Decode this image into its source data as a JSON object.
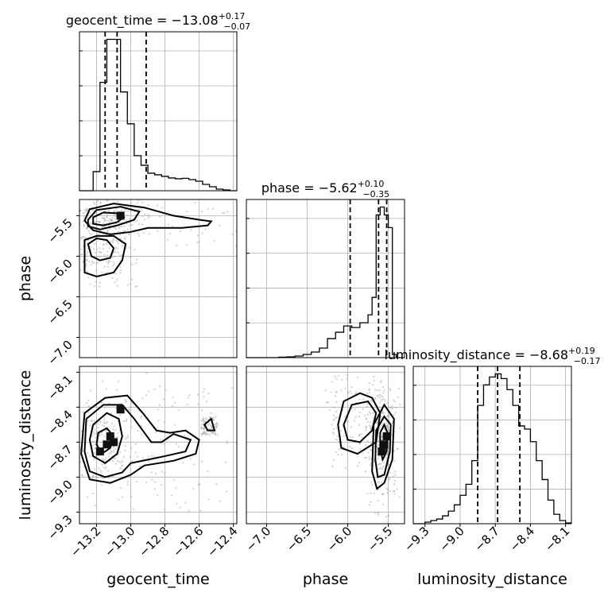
{
  "chart_data": {
    "type": "corner",
    "parameters": [
      {
        "name": "geocent_time",
        "axis_label": "geocent_time",
        "title": {
          "prefix": "geocent_time = ",
          "median": "−13.08",
          "plus": "+0.17",
          "minus": "−0.07"
        },
        "range": [
          -13.3,
          -12.38
        ],
        "ticks": [
          -13.2,
          -13.0,
          -12.8,
          -12.6,
          -12.4
        ],
        "tick_labels": [
          "−13.2",
          "−13.0",
          "−12.8",
          "−12.6",
          "−12.4"
        ],
        "quantiles": [
          -13.15,
          -13.08,
          -12.91
        ],
        "histogram": {
          "edges": [
            -13.3,
            -13.26,
            -13.22,
            -13.18,
            -13.14,
            -13.1,
            -13.06,
            -13.02,
            -12.98,
            -12.94,
            -12.9,
            -12.86,
            -12.82,
            -12.78,
            -12.74,
            -12.7,
            -12.66,
            -12.62,
            -12.58,
            -12.54,
            -12.5,
            -12.46,
            -12.42,
            -12.38
          ],
          "counts": [
            0,
            0,
            0.12,
            0.68,
            0.95,
            0.95,
            0.62,
            0.42,
            0.22,
            0.16,
            0.11,
            0.1,
            0.09,
            0.08,
            0.075,
            0.078,
            0.07,
            0.06,
            0.04,
            0.025,
            0.01,
            0.005,
            0
          ]
        }
      },
      {
        "name": "phase",
        "axis_label": "phase",
        "title": {
          "prefix": "phase = ",
          "median": "−5.62",
          "plus": "+0.10",
          "minus": "−0.35"
        },
        "range": [
          -7.25,
          -5.3
        ],
        "ticks": [
          -7.0,
          -6.5,
          -6.0,
          -5.5
        ],
        "tick_labels": [
          "−7.0",
          "−6.5",
          "−6.0",
          "−5.5"
        ],
        "quantiles": [
          -5.97,
          -5.62,
          -5.52
        ],
        "histogram": {
          "edges": [
            -7.25,
            -7.15,
            -7.05,
            -6.95,
            -6.85,
            -6.75,
            -6.65,
            -6.55,
            -6.45,
            -6.35,
            -6.25,
            -6.15,
            -6.05,
            -5.95,
            -5.85,
            -5.75,
            -5.7,
            -5.65,
            -5.6,
            -5.55,
            -5.5,
            -5.45,
            -5.4,
            -5.3
          ],
          "counts": [
            0,
            0,
            0,
            0,
            0.003,
            0.005,
            0.01,
            0.02,
            0.035,
            0.06,
            0.12,
            0.16,
            0.2,
            0.19,
            0.22,
            0.27,
            0.38,
            0.9,
            0.95,
            0.9,
            0.82,
            0.02,
            0
          ]
        }
      },
      {
        "name": "luminosity_distance",
        "axis_label": "luminosity_distance",
        "title": {
          "prefix": "luminosity_distance = ",
          "median": "−8.68",
          "plus": "+0.19",
          "minus": "−0.17"
        },
        "range": [
          -9.4,
          -8.05
        ],
        "ticks": [
          -9.3,
          -9.0,
          -8.7,
          -8.4,
          -8.1
        ],
        "tick_labels": [
          "−9.3",
          "−9.0",
          "−8.7",
          "−8.4",
          "−8.1"
        ],
        "quantiles": [
          -8.85,
          -8.68,
          -8.49
        ],
        "histogram": {
          "edges": [
            -9.4,
            -9.35,
            -9.3,
            -9.25,
            -9.2,
            -9.15,
            -9.1,
            -9.05,
            -9.0,
            -8.95,
            -8.9,
            -8.85,
            -8.8,
            -8.75,
            -8.7,
            -8.65,
            -8.6,
            -8.55,
            -8.5,
            -8.45,
            -8.4,
            -8.35,
            -8.3,
            -8.25,
            -8.2,
            -8.15,
            -8.1,
            -8.05
          ],
          "counts": [
            0,
            0,
            0.01,
            0.02,
            0.03,
            0.05,
            0.08,
            0.12,
            0.18,
            0.25,
            0.4,
            0.75,
            0.88,
            0.93,
            0.95,
            0.92,
            0.85,
            0.75,
            0.62,
            0.6,
            0.52,
            0.4,
            0.28,
            0.15,
            0.06,
            0.02,
            0.005
          ]
        }
      }
    ],
    "pairs": [
      {
        "x": "geocent_time",
        "y": "phase",
        "contours": [
          [
            [
              -13.22,
              -5.52
            ],
            [
              -13.16,
              -5.46
            ],
            [
              -13.08,
              -5.47
            ],
            [
              -13.04,
              -5.52
            ],
            [
              -13.08,
              -5.58
            ],
            [
              -13.16,
              -5.62
            ],
            [
              -13.22,
              -5.6
            ]
          ],
          [
            [
              -13.25,
              -5.55
            ],
            [
              -13.2,
              -5.43
            ],
            [
              -13.06,
              -5.39
            ],
            [
              -12.95,
              -5.45
            ],
            [
              -12.98,
              -5.55
            ],
            [
              -13.08,
              -5.62
            ],
            [
              -13.18,
              -5.67
            ],
            [
              -13.25,
              -5.63
            ]
          ],
          [
            [
              -13.27,
              -5.56
            ],
            [
              -13.24,
              -5.42
            ],
            [
              -13.1,
              -5.35
            ],
            [
              -12.92,
              -5.4
            ],
            [
              -12.75,
              -5.5
            ],
            [
              -12.6,
              -5.55
            ],
            [
              -12.53,
              -5.57
            ],
            [
              -12.55,
              -5.62
            ],
            [
              -12.7,
              -5.65
            ],
            [
              -12.9,
              -5.65
            ],
            [
              -13.0,
              -5.7
            ],
            [
              -13.12,
              -5.73
            ],
            [
              -13.22,
              -5.68
            ]
          ],
          [
            [
              -13.25,
              -5.85
            ],
            [
              -13.23,
              -6.0
            ],
            [
              -13.18,
              -6.05
            ],
            [
              -13.12,
              -6.02
            ],
            [
              -13.1,
              -5.9
            ],
            [
              -13.14,
              -5.8
            ],
            [
              -13.2,
              -5.78
            ]
          ],
          [
            [
              -13.27,
              -5.8
            ],
            [
              -13.27,
              -6.2
            ],
            [
              -13.2,
              -6.25
            ],
            [
              -13.1,
              -6.2
            ],
            [
              -13.05,
              -6.05
            ],
            [
              -13.03,
              -5.85
            ],
            [
              -13.1,
              -5.75
            ],
            [
              -13.2,
              -5.75
            ]
          ]
        ],
        "dense_cells": [
          [
            -13.06,
            -5.5
          ]
        ]
      },
      {
        "x": "geocent_time",
        "y": "luminosity_distance",
        "contours": [
          [
            [
              -13.19,
              -8.62
            ],
            [
              -13.14,
              -8.58
            ],
            [
              -13.1,
              -8.65
            ],
            [
              -13.12,
              -8.75
            ],
            [
              -13.17,
              -8.8
            ],
            [
              -13.2,
              -8.72
            ]
          ],
          [
            [
              -13.22,
              -8.55
            ],
            [
              -13.14,
              -8.45
            ],
            [
              -13.07,
              -8.5
            ],
            [
              -13.05,
              -8.65
            ],
            [
              -13.08,
              -8.8
            ],
            [
              -13.15,
              -8.88
            ],
            [
              -13.22,
              -8.82
            ],
            [
              -13.24,
              -8.68
            ]
          ],
          [
            [
              -13.26,
              -8.5
            ],
            [
              -13.16,
              -8.38
            ],
            [
              -13.05,
              -8.38
            ],
            [
              -12.98,
              -8.5
            ],
            [
              -12.93,
              -8.6
            ],
            [
              -12.88,
              -8.7
            ],
            [
              -12.82,
              -8.7
            ],
            [
              -12.75,
              -8.63
            ],
            [
              -12.65,
              -8.68
            ],
            [
              -12.68,
              -8.78
            ],
            [
              -12.8,
              -8.82
            ],
            [
              -12.9,
              -8.85
            ],
            [
              -13.0,
              -8.88
            ],
            [
              -13.05,
              -8.96
            ],
            [
              -13.15,
              -9.0
            ],
            [
              -13.24,
              -8.95
            ],
            [
              -13.27,
              -8.78
            ]
          ],
          [
            [
              -13.27,
              -8.45
            ],
            [
              -13.15,
              -8.32
            ],
            [
              -13.02,
              -8.3
            ],
            [
              -12.93,
              -8.45
            ],
            [
              -12.85,
              -8.6
            ],
            [
              -12.77,
              -8.62
            ],
            [
              -12.68,
              -8.6
            ],
            [
              -12.6,
              -8.68
            ],
            [
              -12.62,
              -8.8
            ],
            [
              -12.75,
              -8.86
            ],
            [
              -12.92,
              -8.9
            ],
            [
              -13.0,
              -8.98
            ],
            [
              -13.12,
              -9.05
            ],
            [
              -13.24,
              -9.02
            ],
            [
              -13.29,
              -8.8
            ]
          ],
          [
            [
              -12.57,
              -8.55
            ],
            [
              -12.53,
              -8.5
            ],
            [
              -12.51,
              -8.6
            ],
            [
              -12.55,
              -8.6
            ]
          ]
        ],
        "dense_cells": [
          [
            -13.06,
            -8.42
          ],
          [
            -13.14,
            -8.72
          ],
          [
            -13.18,
            -8.78
          ],
          [
            -13.1,
            -8.7
          ],
          [
            -13.12,
            -8.65
          ]
        ]
      },
      {
        "x": "phase",
        "y": "luminosity_distance",
        "contours": [
          [
            [
              -5.6,
              -8.62
            ],
            [
              -5.55,
              -8.55
            ],
            [
              -5.51,
              -8.62
            ],
            [
              -5.52,
              -8.78
            ],
            [
              -5.57,
              -8.85
            ],
            [
              -5.6,
              -8.75
            ]
          ],
          [
            [
              -5.65,
              -8.6
            ],
            [
              -5.55,
              -8.48
            ],
            [
              -5.47,
              -8.55
            ],
            [
              -5.48,
              -8.78
            ],
            [
              -5.55,
              -8.98
            ],
            [
              -5.63,
              -9.0
            ],
            [
              -5.66,
              -8.85
            ]
          ],
          [
            [
              -5.68,
              -8.55
            ],
            [
              -5.55,
              -8.38
            ],
            [
              -5.43,
              -8.5
            ],
            [
              -5.45,
              -8.85
            ],
            [
              -5.55,
              -9.05
            ],
            [
              -5.64,
              -9.1
            ],
            [
              -5.7,
              -8.95
            ]
          ],
          [
            [
              -6.05,
              -8.55
            ],
            [
              -5.95,
              -8.38
            ],
            [
              -5.75,
              -8.35
            ],
            [
              -5.65,
              -8.45
            ],
            [
              -5.7,
              -8.6
            ],
            [
              -5.85,
              -8.7
            ],
            [
              -6.0,
              -8.68
            ]
          ],
          [
            [
              -6.12,
              -8.55
            ],
            [
              -6.05,
              -8.35
            ],
            [
              -5.85,
              -8.28
            ],
            [
              -5.7,
              -8.32
            ],
            [
              -5.6,
              -8.45
            ],
            [
              -5.65,
              -8.7
            ],
            [
              -5.88,
              -8.8
            ],
            [
              -6.08,
              -8.75
            ]
          ]
        ],
        "dense_cells": [
          [
            -5.52,
            -8.65
          ],
          [
            -5.58,
            -8.78
          ],
          [
            -5.55,
            -8.72
          ]
        ]
      }
    ]
  }
}
